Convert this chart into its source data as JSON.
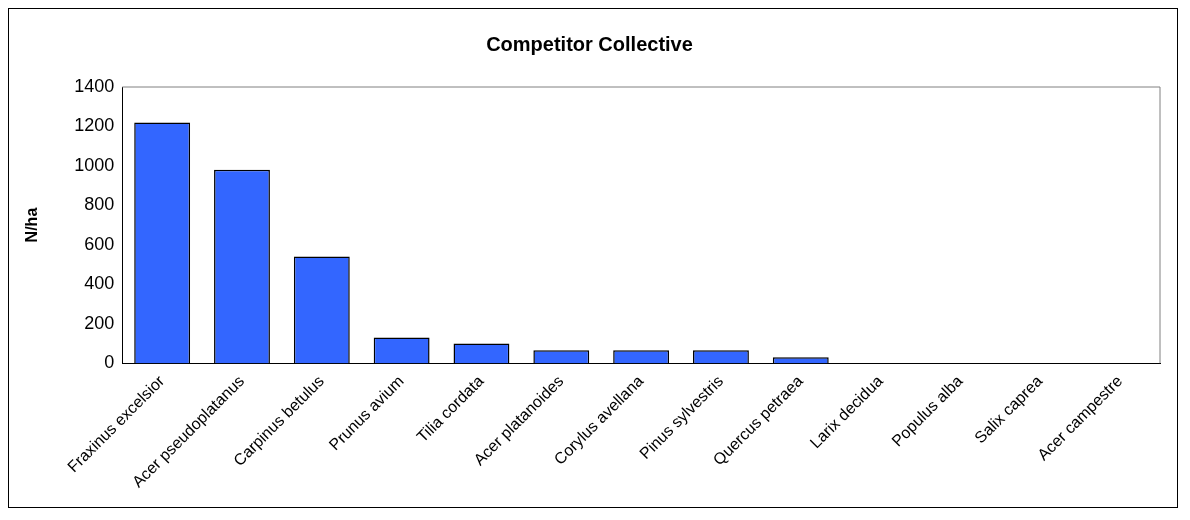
{
  "chart_data": {
    "type": "bar",
    "title": "Competitor Collective",
    "ylabel": "N/ha",
    "categories": [
      "Fraxinus excelsior",
      "Acer pseudoplatanus",
      "Carpinus betulus",
      "Prunus avium",
      "Tilia cordata",
      "Acer platanoides",
      "Corylus avellana",
      "Pinus sylvestris",
      "Quercus petraea",
      "Larix decidua",
      "Populus alba",
      "Salix caprea",
      "Acer campestre"
    ],
    "values": [
      1220,
      980,
      540,
      130,
      100,
      65,
      65,
      65,
      30,
      0,
      0,
      0,
      0
    ],
    "color": "#3366ff",
    "ylim": [
      0,
      1400
    ],
    "yticks": [
      0,
      200,
      400,
      600,
      800,
      1000,
      1200,
      1400
    ],
    "grid": false,
    "legend": false
  }
}
